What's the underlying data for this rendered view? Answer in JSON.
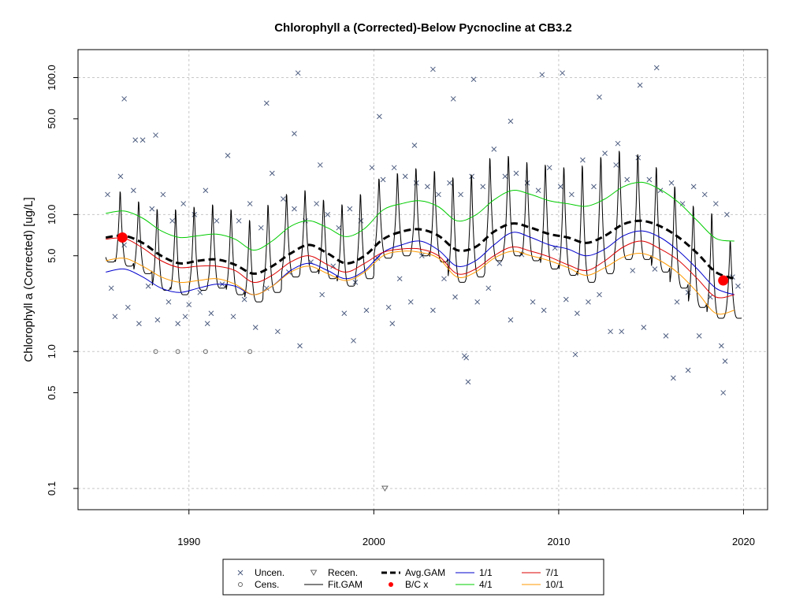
{
  "chart_data": {
    "type": "scatter",
    "title": "Chlorophyll a (Corrected)-Below Pycnocline at CB3.2",
    "xlabel": "",
    "ylabel": "Chlorophyll a (Corrected) [ug/L]",
    "y_scale": "log",
    "xlim": [
      1984.0,
      2021.3
    ],
    "ylim": [
      0.07,
      160
    ],
    "x_ticks": [
      1990,
      2000,
      2010,
      2020
    ],
    "x_tick_labels": [
      "1990",
      "2000",
      "2010",
      "2020"
    ],
    "y_ticks": [
      0.1,
      0.5,
      1.0,
      5.0,
      10.0,
      50.0,
      100.0
    ],
    "y_tick_labels": [
      "0.1",
      "0.5",
      "1.0",
      "5.0",
      "10.0",
      "50.0",
      "100.0"
    ],
    "grid": true,
    "legend_position": "bottom-center",
    "colors": {
      "uncen": "#4d5d80",
      "cens": "#666666",
      "fit_gam": "#000000",
      "avg_gam": "#000000",
      "bc": "#ff0000",
      "q1_1": "#0000cd",
      "q4_1": "#00cc00",
      "q7_1": "#dd0000",
      "q10_1": "#ff9900",
      "grid": "#c8c8c8"
    },
    "legend": [
      {
        "key": "uncen",
        "label": "Uncen.",
        "symbol": "x"
      },
      {
        "key": "cens",
        "label": "Cens.",
        "symbol": "o"
      },
      {
        "key": "recen",
        "label": "Recen.",
        "symbol": "triangle-down"
      },
      {
        "key": "fit_gam",
        "label": "Fit.GAM",
        "symbol": "line"
      },
      {
        "key": "avg_gam",
        "label": "Avg.GAM",
        "symbol": "dash"
      },
      {
        "key": "bc",
        "label": "B/C x",
        "symbol": "dot"
      },
      {
        "key": "q1_1",
        "label": "1/1",
        "symbol": "line"
      },
      {
        "key": "q4_1",
        "label": "4/1",
        "symbol": "line"
      },
      {
        "key": "q7_1",
        "label": "7/1",
        "symbol": "line"
      },
      {
        "key": "q10_1",
        "label": "10/1",
        "symbol": "line"
      }
    ],
    "series": [
      {
        "name": "Avg.GAM",
        "x": [
          1985.5,
          1986.5,
          1987.5,
          1988.5,
          1989.5,
          1990.5,
          1991.5,
          1992.5,
          1993.5,
          1994.5,
          1995.5,
          1996.5,
          1997.5,
          1998.5,
          1999.5,
          2000.5,
          2001.5,
          2002.5,
          2003.5,
          2004.5,
          2005.5,
          2006.5,
          2007.5,
          2008.5,
          2009.5,
          2010.5,
          2011.5,
          2012.5,
          2013.5,
          2014.5,
          2015.5,
          2016.5,
          2017.5,
          2018.5,
          2019.5
        ],
        "y": [
          6.8,
          7.0,
          6.2,
          5.0,
          4.4,
          4.6,
          4.7,
          4.3,
          3.7,
          4.2,
          5.2,
          6.0,
          5.2,
          4.4,
          5.0,
          6.6,
          7.5,
          7.8,
          7.0,
          5.5,
          5.8,
          7.5,
          8.6,
          8.0,
          7.2,
          6.8,
          6.2,
          7.0,
          8.5,
          9.0,
          8.2,
          6.8,
          5.2,
          3.8,
          3.4
        ]
      },
      {
        "name": "1/1",
        "x": [
          1985.5,
          1986.5,
          1987.5,
          1988.5,
          1989.5,
          1990.5,
          1991.5,
          1992.5,
          1993.5,
          1994.5,
          1995.5,
          1996.5,
          1997.5,
          1998.5,
          1999.5,
          2000.5,
          2001.5,
          2002.5,
          2003.5,
          2004.5,
          2005.5,
          2006.5,
          2007.5,
          2008.5,
          2009.5,
          2010.5,
          2011.5,
          2012.5,
          2013.5,
          2014.5,
          2015.5,
          2016.5,
          2017.5,
          2018.5,
          2019.5
        ],
        "y": [
          3.8,
          4.0,
          3.5,
          2.9,
          2.7,
          2.9,
          3.1,
          3.0,
          2.6,
          3.0,
          3.9,
          4.4,
          3.9,
          3.4,
          3.9,
          5.3,
          6.0,
          6.4,
          5.5,
          4.2,
          4.6,
          6.0,
          7.4,
          6.8,
          6.0,
          5.6,
          5.0,
          5.6,
          7.0,
          7.6,
          6.8,
          5.4,
          4.0,
          2.9,
          2.6
        ]
      },
      {
        "name": "4/1",
        "x": [
          1985.5,
          1986.5,
          1987.5,
          1988.5,
          1989.5,
          1990.5,
          1991.5,
          1992.5,
          1993.5,
          1994.5,
          1995.5,
          1996.5,
          1997.5,
          1998.5,
          1999.5,
          2000.5,
          2001.5,
          2002.5,
          2003.5,
          2004.5,
          2005.5,
          2006.5,
          2007.5,
          2008.5,
          2009.5,
          2010.5,
          2011.5,
          2012.5,
          2013.5,
          2014.5,
          2015.5,
          2016.5,
          2017.5,
          2018.5,
          2019.5
        ],
        "y": [
          10.2,
          10.6,
          9.4,
          7.6,
          6.8,
          7.0,
          7.2,
          6.6,
          5.5,
          6.4,
          8.2,
          9.0,
          8.0,
          6.9,
          7.9,
          10.8,
          12.0,
          12.6,
          11.4,
          9.0,
          9.9,
          12.8,
          15.0,
          14.0,
          12.6,
          12.0,
          11.5,
          13.0,
          16.0,
          17.2,
          15.2,
          12.2,
          9.0,
          6.7,
          6.4
        ]
      },
      {
        "name": "7/1",
        "x": [
          1985.5,
          1986.5,
          1987.5,
          1988.5,
          1989.5,
          1990.5,
          1991.5,
          1992.5,
          1993.5,
          1994.5,
          1995.5,
          1996.5,
          1997.5,
          1998.5,
          1999.5,
          2000.5,
          2001.5,
          2002.5,
          2003.5,
          2004.5,
          2005.5,
          2006.5,
          2007.5,
          2008.5,
          2009.5,
          2010.5,
          2011.5,
          2012.5,
          2013.5,
          2014.5,
          2015.5,
          2016.5,
          2017.5,
          2018.5,
          2019.5
        ],
        "y": [
          6.6,
          6.7,
          5.7,
          4.6,
          4.1,
          4.2,
          4.2,
          3.9,
          3.2,
          3.6,
          4.5,
          5.0,
          4.3,
          3.8,
          4.4,
          5.3,
          5.6,
          5.6,
          5.0,
          3.7,
          4.0,
          5.0,
          5.8,
          5.4,
          4.9,
          4.3,
          3.9,
          4.6,
          5.8,
          6.4,
          5.6,
          4.6,
          3.4,
          2.5,
          2.6
        ]
      },
      {
        "name": "10/1",
        "x": [
          1985.5,
          1986.5,
          1987.5,
          1988.5,
          1989.5,
          1990.5,
          1991.5,
          1992.5,
          1993.5,
          1994.5,
          1995.5,
          1996.5,
          1997.5,
          1998.5,
          1999.5,
          2000.5,
          2001.5,
          2002.5,
          2003.5,
          2004.5,
          2005.5,
          2006.5,
          2007.5,
          2008.5,
          2009.5,
          2010.5,
          2011.5,
          2012.5,
          2013.5,
          2014.5,
          2015.5,
          2016.5,
          2017.5,
          2018.5,
          2019.5
        ],
        "y": [
          4.6,
          4.8,
          4.2,
          3.5,
          3.2,
          3.3,
          3.4,
          3.1,
          2.6,
          3.0,
          3.8,
          4.2,
          3.7,
          3.3,
          3.8,
          5.0,
          5.4,
          5.3,
          4.8,
          3.5,
          3.8,
          4.8,
          5.4,
          5.0,
          4.6,
          4.1,
          3.6,
          4.1,
          4.9,
          5.2,
          4.6,
          3.7,
          2.7,
          1.9,
          2.0
        ]
      },
      {
        "name": "B/C x",
        "x": [
          1986.4,
          2018.9
        ],
        "y": [
          6.8,
          3.3
        ]
      }
    ],
    "fit_gam": {
      "peak_month_fraction": 0.28,
      "trough_month_fraction": 0.78,
      "x_start": 1985.5,
      "x_end": 2019.9,
      "peak_y": [
        9.5,
        16.0,
        13.5,
        12.0,
        12.0,
        12.5,
        13.0,
        12.0,
        10.0,
        13.0,
        15.5,
        16.5,
        14.0,
        13.0,
        15.5,
        20.0,
        22.0,
        24.0,
        23.0,
        21.0,
        22.0,
        29.0,
        30.0,
        27.0,
        26.0,
        25.0,
        26.0,
        30.0,
        33.0,
        31.0,
        25.0,
        18.0,
        13.0,
        11.5,
        7.0
      ],
      "trough_y": [
        4.5,
        4.2,
        3.7,
        2.8,
        2.6,
        2.8,
        2.9,
        2.6,
        2.3,
        2.7,
        3.5,
        3.8,
        3.4,
        3.0,
        3.4,
        4.8,
        5.0,
        5.0,
        4.5,
        3.2,
        3.5,
        4.6,
        5.0,
        4.6,
        4.0,
        3.6,
        3.2,
        3.7,
        4.7,
        4.7,
        3.8,
        2.9,
        2.1,
        1.75,
        1.75
      ]
    },
    "censored": {
      "x": [
        1988.2,
        1989.4,
        1990.9,
        1993.3
      ],
      "y": [
        1.0,
        1.0,
        1.0,
        1.0
      ]
    },
    "recensored": {
      "x": [
        2000.6
      ],
      "y": [
        0.1
      ]
    },
    "uncensored": {
      "x": [
        1985.6,
        1985.8,
        1986.0,
        1986.3,
        1986.5,
        1986.7,
        1987.0,
        1987.3,
        1987.5,
        1987.8,
        1988.0,
        1988.3,
        1988.6,
        1988.9,
        1989.1,
        1989.4,
        1989.7,
        1990.0,
        1990.3,
        1990.6,
        1990.9,
        1991.2,
        1991.5,
        1991.8,
        1992.1,
        1992.4,
        1992.7,
        1993.0,
        1993.3,
        1993.6,
        1993.9,
        1994.2,
        1994.5,
        1994.8,
        1995.1,
        1995.4,
        1995.7,
        1996.0,
        1996.3,
        1996.6,
        1996.9,
        1997.2,
        1997.5,
        1997.8,
        1998.1,
        1998.4,
        1998.7,
        1999.0,
        1999.3,
        1999.6,
        1999.9,
        2000.2,
        2000.5,
        2000.8,
        2001.1,
        2001.4,
        2001.7,
        2002.0,
        2002.3,
        2002.6,
        2002.9,
        2003.2,
        2003.5,
        2003.8,
        2004.1,
        2004.4,
        2004.7,
        2005.0,
        2005.3,
        2005.6,
        2005.9,
        2006.2,
        2006.5,
        2006.8,
        2007.1,
        2007.4,
        2007.7,
        2008.0,
        2008.3,
        2008.6,
        2008.9,
        2009.2,
        2009.5,
        2009.8,
        2010.1,
        2010.4,
        2010.7,
        2011.0,
        2011.3,
        2011.6,
        2011.9,
        2012.2,
        2012.5,
        2012.8,
        2013.1,
        2013.4,
        2013.7,
        2014.0,
        2014.3,
        2014.6,
        2014.9,
        2015.2,
        2015.5,
        2015.8,
        2016.1,
        2016.4,
        2016.7,
        2017.0,
        2017.3,
        2017.6,
        2017.9,
        2018.2,
        2018.5,
        2018.8,
        2019.1,
        2019.4,
        2019.7,
        1986.5,
        1995.9,
        2003.2,
        2005.4,
        2009.1,
        2010.2,
        2015.3,
        2014.4,
        1997.1,
        2000.3,
        2002.2,
        2007.4,
        1994.2,
        1988.2,
        1987.1,
        2012.2,
        2004.3,
        2004.9,
        2005.1,
        2016.2,
        2018.9,
        2019.0,
        2017.0,
        2013.2,
        2010.9,
        2001.0,
        1995.7,
        1989.8,
        1991.0,
        1998.9
      ],
      "y": [
        14.0,
        2.9,
        1.8,
        19.0,
        6.0,
        2.1,
        15.0,
        1.6,
        35.0,
        3.0,
        11.0,
        1.7,
        14.0,
        2.3,
        9.0,
        1.6,
        12.0,
        2.2,
        10.0,
        2.7,
        15.0,
        1.9,
        9.0,
        3.1,
        27.0,
        1.8,
        9.0,
        2.4,
        12.0,
        1.5,
        8.0,
        2.9,
        20.0,
        1.4,
        13.0,
        3.8,
        11.0,
        1.1,
        9.0,
        4.5,
        12.0,
        2.6,
        10.0,
        4.2,
        8.0,
        1.9,
        11.0,
        3.2,
        9.0,
        2.0,
        22.0,
        4.8,
        18.0,
        2.1,
        22.0,
        3.4,
        19.0,
        2.3,
        17.0,
        5.0,
        16.0,
        2.0,
        14.0,
        3.4,
        17.0,
        2.5,
        14.0,
        0.9,
        19.0,
        2.3,
        16.0,
        2.9,
        30.0,
        4.4,
        19.0,
        1.7,
        20.0,
        5.1,
        17.0,
        2.3,
        15.0,
        2.0,
        22.0,
        5.7,
        16.0,
        2.4,
        14.0,
        1.9,
        25.0,
        2.3,
        16.0,
        2.6,
        28.0,
        1.4,
        23.0,
        1.4,
        18.0,
        3.9,
        26.0,
        1.5,
        18.0,
        4.0,
        15.0,
        1.3,
        17.0,
        2.3,
        12.0,
        2.7,
        16.0,
        1.3,
        14.0,
        2.5,
        12.0,
        1.1,
        10.0,
        3.5,
        3.0,
        70.0,
        108.0,
        115.0,
        97.0,
        105.0,
        108.0,
        118.0,
        88.0,
        23.0,
        52.0,
        32.0,
        48.0,
        65.0,
        38.0,
        35.0,
        72.0,
        70.0,
        0.93,
        0.6,
        0.64,
        0.5,
        0.85,
        0.73,
        33.0,
        0.95,
        1.6,
        39.0,
        1.8,
        1.6,
        1.2
      ]
    }
  }
}
